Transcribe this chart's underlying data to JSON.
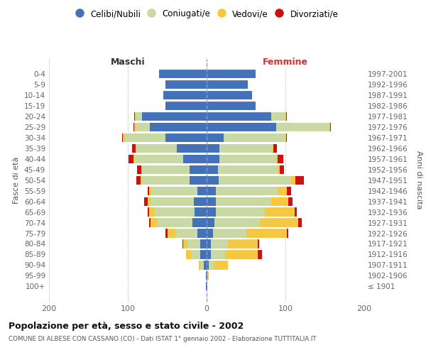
{
  "age_groups": [
    "100+",
    "95-99",
    "90-94",
    "85-89",
    "80-84",
    "75-79",
    "70-74",
    "65-69",
    "60-64",
    "55-59",
    "50-54",
    "45-49",
    "40-44",
    "35-39",
    "30-34",
    "25-29",
    "20-24",
    "15-19",
    "10-14",
    "5-9",
    "0-4"
  ],
  "birth_years": [
    "≤ 1901",
    "1902-1906",
    "1907-1911",
    "1912-1916",
    "1917-1921",
    "1922-1926",
    "1927-1931",
    "1932-1936",
    "1937-1941",
    "1942-1946",
    "1947-1951",
    "1952-1956",
    "1957-1961",
    "1962-1966",
    "1967-1971",
    "1972-1976",
    "1977-1981",
    "1982-1986",
    "1987-1991",
    "1992-1996",
    "1997-2001"
  ],
  "males_celibe": [
    1,
    1,
    4,
    8,
    8,
    12,
    18,
    15,
    16,
    12,
    22,
    22,
    30,
    38,
    52,
    72,
    82,
    52,
    55,
    52,
    60
  ],
  "males_coniugato": [
    0,
    0,
    4,
    12,
    16,
    28,
    45,
    52,
    55,
    58,
    60,
    60,
    62,
    52,
    52,
    18,
    8,
    0,
    0,
    0,
    0
  ],
  "males_vedovo": [
    0,
    0,
    2,
    6,
    6,
    10,
    8,
    6,
    4,
    3,
    2,
    1,
    1,
    0,
    2,
    2,
    1,
    0,
    0,
    0,
    0
  ],
  "males_divorziato": [
    0,
    0,
    0,
    0,
    1,
    2,
    2,
    2,
    4,
    2,
    5,
    5,
    6,
    5,
    1,
    1,
    1,
    0,
    0,
    0,
    0
  ],
  "females_nubile": [
    1,
    1,
    3,
    5,
    5,
    8,
    10,
    12,
    12,
    12,
    15,
    14,
    16,
    16,
    22,
    88,
    82,
    62,
    58,
    52,
    62
  ],
  "females_coniugata": [
    0,
    0,
    6,
    18,
    22,
    42,
    58,
    62,
    70,
    78,
    92,
    76,
    72,
    68,
    78,
    68,
    18,
    0,
    0,
    0,
    0
  ],
  "females_vedova": [
    0,
    2,
    18,
    42,
    38,
    52,
    48,
    38,
    22,
    12,
    6,
    3,
    2,
    1,
    1,
    1,
    1,
    0,
    0,
    0,
    0
  ],
  "females_divorziata": [
    0,
    0,
    0,
    5,
    2,
    2,
    5,
    2,
    5,
    5,
    10,
    5,
    7,
    4,
    1,
    1,
    1,
    0,
    0,
    0,
    0
  ],
  "color_celibe": "#4472b8",
  "color_coniugato": "#c8d9a4",
  "color_vedovo": "#f5c842",
  "color_divorziato": "#cc1111",
  "xlim": 200,
  "title": "Popolazione per età, sesso e stato civile - 2002",
  "subtitle": "COMUNE DI ALBESE CON CASSANO (CO) - Dati ISTAT 1° gennaio 2002 - Elaborazione TUTTITALIA.IT",
  "ylabel_left": "Fasce di età",
  "ylabel_right": "Anni di nascita",
  "label_maschi": "Maschi",
  "label_femmine": "Femmine",
  "legend_labels": [
    "Celibi/Nubili",
    "Coniugati/e",
    "Vedovi/e",
    "Divorziati/e"
  ],
  "bg_color": "#ffffff",
  "grid_color": "#cccccc"
}
